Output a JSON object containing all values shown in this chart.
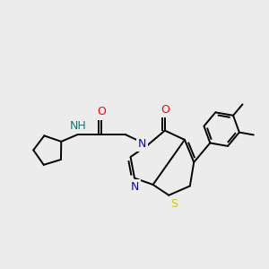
{
  "bg_color": "#ececec",
  "bond_color": "#000000",
  "bond_lw": 1.4,
  "atom_colors": {
    "N": "#0000ff",
    "O": "#ff0000",
    "S": "#cccc00",
    "NH": "#008080",
    "C": "#000000"
  },
  "font_size": 8.5
}
